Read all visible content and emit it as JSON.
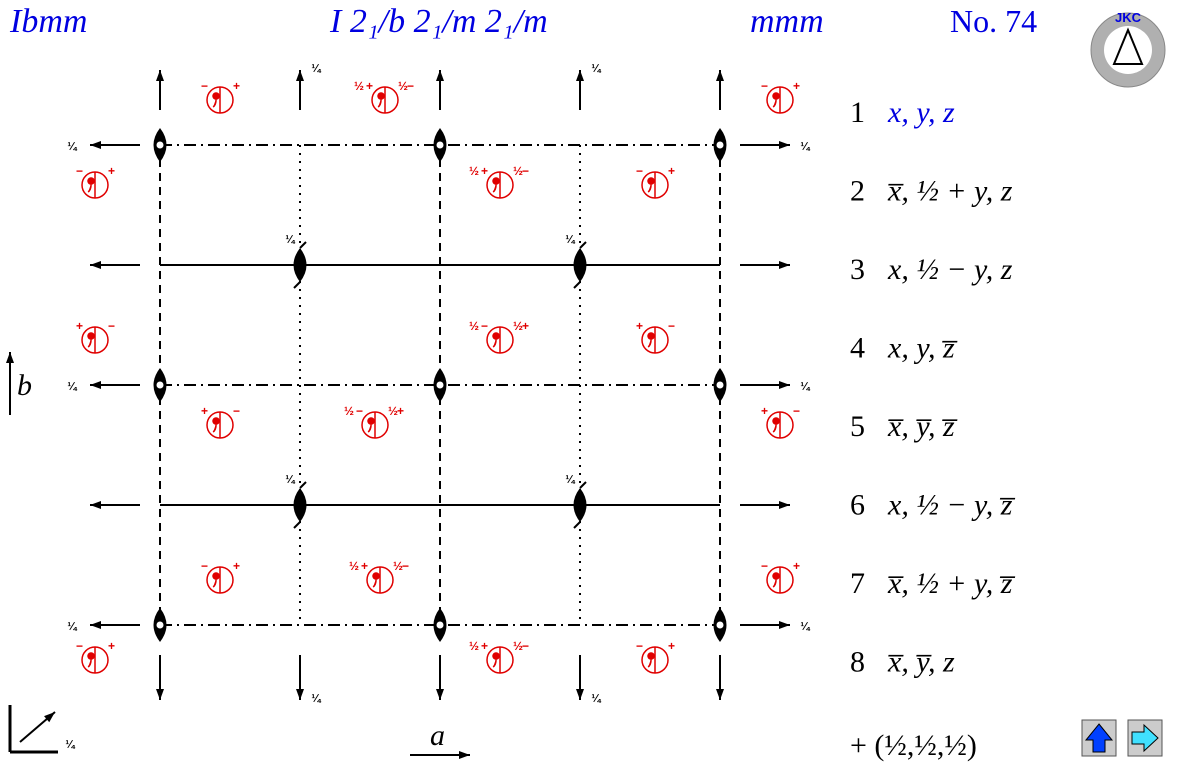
{
  "header": {
    "symbol": "Ibmm",
    "full_symbol": "I 2₁/b 2₁/m 2₁/m",
    "point_group": "mmm",
    "number": "No. 74"
  },
  "logo": "JKC",
  "symbols": {
    "plus": "+",
    "minus": "−",
    "half": "½",
    "quarter": "¼"
  },
  "axes": {
    "a": "a",
    "b": "b"
  },
  "positions": [
    {
      "n": "1",
      "text": "x, y, z"
    },
    {
      "n": "2",
      "text": "x̅, ½ + y, z"
    },
    {
      "n": "3",
      "text": "x, ½ − y, z"
    },
    {
      "n": "4",
      "text": "x, y, z̅"
    },
    {
      "n": "5",
      "text": "x̅, y̅, z̅"
    },
    {
      "n": "6",
      "text": "x, ½ − y, z̅"
    },
    {
      "n": "7",
      "text": "x̅, ½ + y, z̅"
    },
    {
      "n": "8",
      "text": "x̅, y̅, z"
    }
  ],
  "centering": "+ (½,½,½)"
}
